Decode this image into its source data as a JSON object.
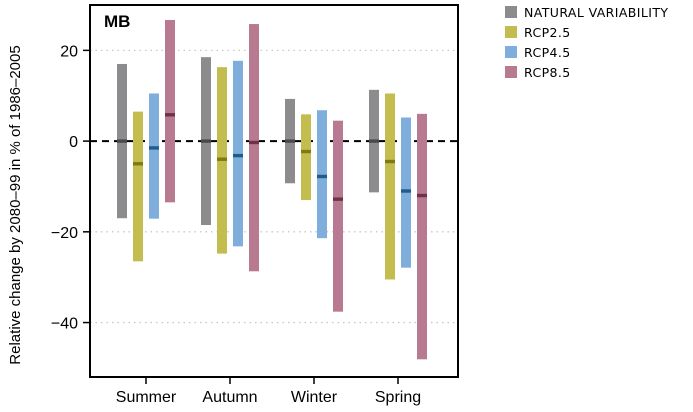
{
  "chart_data": {
    "type": "bar",
    "subtype": "range-bars-with-median",
    "panel_label": "MB",
    "ylabel": "Relative change by 2080–99 in % of 1986–2005",
    "xlabel": "",
    "ylim": [
      -52,
      30
    ],
    "yticks": [
      -40,
      -20,
      0,
      20
    ],
    "ytick_labels": [
      "−40",
      "−20",
      "0",
      "20"
    ],
    "grid": "dotted horizontal at ticks",
    "reference_line": {
      "y": 0,
      "style": "dashed"
    },
    "categories": [
      "Summer",
      "Autumn",
      "Winter",
      "Spring"
    ],
    "legend_position": "top-right, outside",
    "series": [
      {
        "name": "NATURAL VARIABILITY",
        "color": "#8c8c8f",
        "median_color": "#4a4a4d",
        "ranges": [
          [
            -17,
            17
          ],
          [
            -18.5,
            18.5
          ],
          [
            -9.3,
            9.3
          ],
          [
            -11.3,
            11.3
          ]
        ],
        "medians": [
          0,
          0,
          0,
          0
        ]
      },
      {
        "name": "RCP2.5",
        "color": "#c2bd4e",
        "median_color": "#7f7b12",
        "ranges": [
          [
            -26.5,
            6.5
          ],
          [
            -24.8,
            16.3
          ],
          [
            -13,
            5.9
          ],
          [
            -30.5,
            10.5
          ]
        ],
        "medians": [
          -5,
          -4,
          -2.3,
          -4.5
        ]
      },
      {
        "name": "RCP4.5",
        "color": "#7faedc",
        "median_color": "#1e5c8c",
        "ranges": [
          [
            -17.1,
            10.5
          ],
          [
            -23.2,
            17.7
          ],
          [
            -21.4,
            6.8
          ],
          [
            -27.9,
            5.2
          ]
        ],
        "medians": [
          -1.5,
          -3.2,
          -7.8,
          -11
        ]
      },
      {
        "name": "RCP8.5",
        "color": "#b87a91",
        "median_color": "#6e3347",
        "ranges": [
          [
            -13.5,
            26.7
          ],
          [
            -28.7,
            25.8
          ],
          [
            -37.6,
            4.5
          ],
          [
            -48.1,
            6
          ]
        ],
        "medians": [
          5.8,
          -0.3,
          -12.8,
          -12
        ]
      }
    ]
  }
}
